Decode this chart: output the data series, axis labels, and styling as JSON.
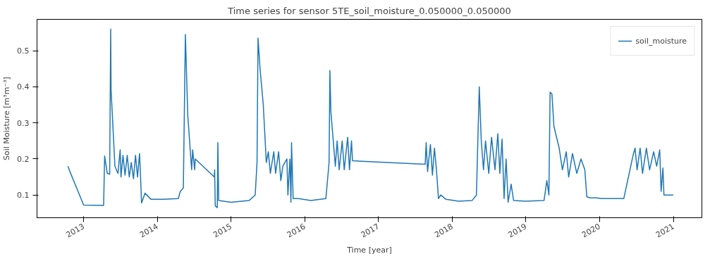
{
  "chart_data": {
    "type": "line",
    "title": "Time series for sensor 5TE_soil_moisture_0.050000_0.050000",
    "xlabel": "Time [year]",
    "ylabel": "Soil Moisture [m³m⁻³]",
    "xlim": [
      "2012-05-15",
      "2021-05-22"
    ],
    "ylim": [
      0.037,
      0.587
    ],
    "xticks": [
      {
        "value": "2013-01-01",
        "label": "2013"
      },
      {
        "value": "2014-01-01",
        "label": "2014"
      },
      {
        "value": "2015-01-01",
        "label": "2015"
      },
      {
        "value": "2016-01-01",
        "label": "2016"
      },
      {
        "value": "2017-01-01",
        "label": "2017"
      },
      {
        "value": "2018-01-01",
        "label": "2018"
      },
      {
        "value": "2019-01-01",
        "label": "2019"
      },
      {
        "value": "2020-01-01",
        "label": "2020"
      },
      {
        "value": "2021-01-01",
        "label": "2021"
      }
    ],
    "yticks": [
      0.1,
      0.2,
      0.3,
      0.4,
      0.5
    ],
    "grid": false,
    "legend": "top right",
    "line_style": "solid",
    "marker": "none",
    "series": [
      {
        "name": "soil_moisture",
        "color": "#1f77b4",
        "x": [
          "2012-10-15",
          "2012-10-25",
          "2013-01-01",
          "2013-04-10",
          "2013-04-15",
          "2013-04-28",
          "2013-05-10",
          "2013-05-15",
          "2013-05-17",
          "2013-06-05",
          "2013-06-20",
          "2013-07-01",
          "2013-07-05",
          "2013-07-15",
          "2013-07-25",
          "2013-08-05",
          "2013-08-15",
          "2013-08-25",
          "2013-09-05",
          "2013-09-15",
          "2013-09-25",
          "2013-10-05",
          "2013-10-10",
          "2013-10-15",
          "2013-11-01",
          "2013-12-01",
          "2014-02-01",
          "2014-04-15",
          "2014-04-25",
          "2014-05-10",
          "2014-05-20",
          "2014-06-01",
          "2014-06-20",
          "2014-06-25",
          "2014-07-05",
          "2014-07-08",
          "2014-10-10",
          "2014-10-12",
          "2014-10-15",
          "2014-10-25",
          "2014-10-28",
          "2014-11-01",
          "2015-01-01",
          "2015-04-01",
          "2015-05-01",
          "2015-05-10",
          "2015-05-15",
          "2015-05-25",
          "2015-06-10",
          "2015-06-25",
          "2015-07-05",
          "2015-07-15",
          "2015-08-01",
          "2015-08-10",
          "2015-08-25",
          "2015-09-05",
          "2015-09-15",
          "2015-10-05",
          "2015-10-10",
          "2015-10-20",
          "2015-10-25",
          "2015-10-28",
          "2015-11-05",
          "2015-12-01",
          "2016-02-01",
          "2016-04-15",
          "2016-05-01",
          "2016-05-05",
          "2016-05-10",
          "2016-06-01",
          "2016-06-10",
          "2016-06-20",
          "2016-07-05",
          "2016-07-15",
          "2016-08-01",
          "2016-08-10",
          "2016-08-20",
          "2016-08-25",
          "2017-08-20",
          "2017-08-25",
          "2017-09-01",
          "2017-09-15",
          "2017-09-25",
          "2017-10-05",
          "2017-10-15",
          "2017-10-25",
          "2017-11-05",
          "2017-12-01",
          "2018-02-01",
          "2018-04-10",
          "2018-05-01",
          "2018-05-15",
          "2018-05-25",
          "2018-06-05",
          "2018-06-15",
          "2018-07-01",
          "2018-07-15",
          "2018-08-01",
          "2018-08-15",
          "2018-08-25",
          "2018-09-05",
          "2018-09-15",
          "2018-09-25",
          "2018-10-05",
          "2018-10-20",
          "2018-11-01",
          "2019-01-01",
          "2019-04-01",
          "2019-04-15",
          "2019-04-25",
          "2019-05-01",
          "2019-05-10",
          "2019-05-20",
          "2019-06-15",
          "2019-07-01",
          "2019-07-20",
          "2019-08-01",
          "2019-08-20",
          "2019-09-10",
          "2019-10-01",
          "2019-10-20",
          "2019-10-30",
          "2019-11-15",
          "2019-12-15",
          "2020-01-10",
          "2020-04-30",
          "2020-06-15",
          "2020-06-25",
          "2020-07-05",
          "2020-07-20",
          "2020-08-01",
          "2020-08-20",
          "2020-09-05",
          "2020-09-25",
          "2020-10-10",
          "2020-10-25",
          "2020-11-01",
          "2020-11-10",
          "2020-11-15",
          "2020-12-31"
        ],
        "values": [
          0.18,
          0.165,
          0.072,
          0.071,
          0.208,
          0.16,
          0.158,
          0.56,
          0.39,
          0.18,
          0.16,
          0.225,
          0.15,
          0.21,
          0.155,
          0.21,
          0.15,
          0.19,
          0.145,
          0.21,
          0.15,
          0.215,
          0.15,
          0.078,
          0.105,
          0.088,
          0.088,
          0.09,
          0.11,
          0.12,
          0.545,
          0.32,
          0.17,
          0.225,
          0.17,
          0.2,
          0.15,
          0.17,
          0.07,
          0.065,
          0.245,
          0.085,
          0.08,
          0.085,
          0.1,
          0.19,
          0.535,
          0.45,
          0.35,
          0.19,
          0.22,
          0.16,
          0.22,
          0.16,
          0.22,
          0.14,
          0.18,
          0.2,
          0.1,
          0.2,
          0.08,
          0.245,
          0.09,
          0.09,
          0.085,
          0.09,
          0.19,
          0.445,
          0.33,
          0.18,
          0.25,
          0.17,
          0.25,
          0.17,
          0.26,
          0.17,
          0.25,
          0.195,
          0.185,
          0.245,
          0.165,
          0.24,
          0.155,
          0.23,
          0.17,
          0.09,
          0.1,
          0.088,
          0.083,
          0.085,
          0.1,
          0.4,
          0.25,
          0.17,
          0.25,
          0.16,
          0.26,
          0.17,
          0.27,
          0.16,
          0.255,
          0.09,
          0.2,
          0.08,
          0.13,
          0.085,
          0.083,
          0.085,
          0.14,
          0.1,
          0.385,
          0.38,
          0.29,
          0.23,
          0.17,
          0.22,
          0.15,
          0.215,
          0.16,
          0.2,
          0.17,
          0.095,
          0.092,
          0.092,
          0.09,
          0.09,
          0.21,
          0.23,
          0.17,
          0.23,
          0.16,
          0.23,
          0.17,
          0.22,
          0.18,
          0.225,
          0.11,
          0.175,
          0.1,
          0.1
        ]
      }
    ]
  }
}
